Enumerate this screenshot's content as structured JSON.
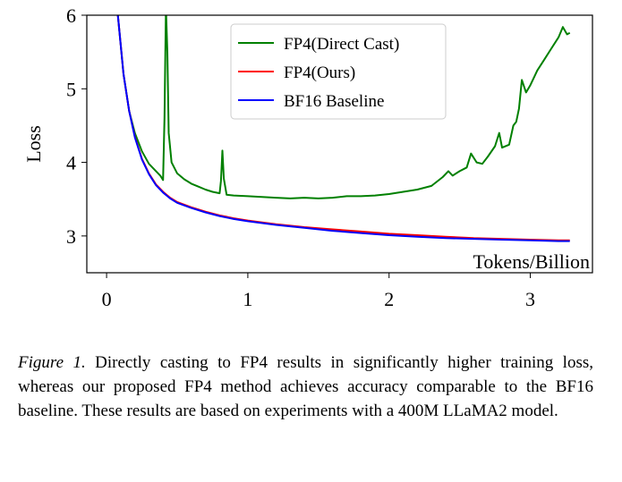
{
  "chart_data": {
    "type": "line",
    "xlabel": "Tokens/Billion",
    "ylabel": "Loss",
    "xlim": [
      -0.14,
      3.44
    ],
    "ylim": [
      2.5,
      6.0
    ],
    "xticks": [
      0,
      1,
      2,
      3
    ],
    "xtick_labels": [
      "0",
      "1",
      "2",
      "3"
    ],
    "yticks": [
      3,
      4,
      5,
      6
    ],
    "ytick_labels": [
      "3",
      "4",
      "5",
      "6"
    ],
    "grid": false,
    "legend_position": "top-center",
    "series": [
      {
        "name": "FP4(Direct Cast)",
        "color": "#008000",
        "points": [
          [
            0.08,
            6.0
          ],
          [
            0.12,
            5.2
          ],
          [
            0.16,
            4.7
          ],
          [
            0.2,
            4.4
          ],
          [
            0.25,
            4.15
          ],
          [
            0.3,
            3.98
          ],
          [
            0.35,
            3.88
          ],
          [
            0.38,
            3.82
          ],
          [
            0.4,
            3.76
          ],
          [
            0.41,
            4.6
          ],
          [
            0.42,
            6.1
          ],
          [
            0.43,
            5.5
          ],
          [
            0.44,
            4.4
          ],
          [
            0.46,
            4.0
          ],
          [
            0.5,
            3.85
          ],
          [
            0.55,
            3.77
          ],
          [
            0.6,
            3.71
          ],
          [
            0.65,
            3.67
          ],
          [
            0.7,
            3.63
          ],
          [
            0.75,
            3.6
          ],
          [
            0.8,
            3.58
          ],
          [
            0.81,
            3.75
          ],
          [
            0.82,
            4.16
          ],
          [
            0.83,
            3.78
          ],
          [
            0.85,
            3.56
          ],
          [
            0.9,
            3.55
          ],
          [
            1.0,
            3.54
          ],
          [
            1.1,
            3.53
          ],
          [
            1.2,
            3.52
          ],
          [
            1.3,
            3.51
          ],
          [
            1.4,
            3.52
          ],
          [
            1.5,
            3.51
          ],
          [
            1.6,
            3.52
          ],
          [
            1.7,
            3.54
          ],
          [
            1.8,
            3.54
          ],
          [
            1.9,
            3.55
          ],
          [
            2.0,
            3.57
          ],
          [
            2.1,
            3.6
          ],
          [
            2.2,
            3.63
          ],
          [
            2.3,
            3.68
          ],
          [
            2.38,
            3.8
          ],
          [
            2.42,
            3.88
          ],
          [
            2.45,
            3.82
          ],
          [
            2.5,
            3.88
          ],
          [
            2.55,
            3.93
          ],
          [
            2.58,
            4.12
          ],
          [
            2.62,
            4.0
          ],
          [
            2.66,
            3.98
          ],
          [
            2.7,
            4.08
          ],
          [
            2.75,
            4.22
          ],
          [
            2.78,
            4.4
          ],
          [
            2.8,
            4.2
          ],
          [
            2.85,
            4.24
          ],
          [
            2.88,
            4.5
          ],
          [
            2.9,
            4.55
          ],
          [
            2.92,
            4.73
          ],
          [
            2.94,
            5.12
          ],
          [
            2.97,
            4.95
          ],
          [
            3.0,
            5.05
          ],
          [
            3.05,
            5.25
          ],
          [
            3.1,
            5.4
          ],
          [
            3.15,
            5.55
          ],
          [
            3.2,
            5.7
          ],
          [
            3.23,
            5.84
          ],
          [
            3.26,
            5.74
          ],
          [
            3.28,
            5.76
          ]
        ]
      },
      {
        "name": "FP4(Ours)",
        "color": "#ff0000",
        "points": [
          [
            0.08,
            6.0
          ],
          [
            0.12,
            5.2
          ],
          [
            0.16,
            4.7
          ],
          [
            0.2,
            4.35
          ],
          [
            0.25,
            4.05
          ],
          [
            0.3,
            3.85
          ],
          [
            0.35,
            3.7
          ],
          [
            0.4,
            3.6
          ],
          [
            0.45,
            3.52
          ],
          [
            0.5,
            3.46
          ],
          [
            0.6,
            3.39
          ],
          [
            0.7,
            3.33
          ],
          [
            0.8,
            3.28
          ],
          [
            0.9,
            3.24
          ],
          [
            1.0,
            3.21
          ],
          [
            1.2,
            3.16
          ],
          [
            1.4,
            3.12
          ],
          [
            1.6,
            3.09
          ],
          [
            1.8,
            3.06
          ],
          [
            2.0,
            3.03
          ],
          [
            2.2,
            3.01
          ],
          [
            2.4,
            2.99
          ],
          [
            2.6,
            2.97
          ],
          [
            2.8,
            2.96
          ],
          [
            3.0,
            2.95
          ],
          [
            3.2,
            2.94
          ],
          [
            3.28,
            2.94
          ]
        ]
      },
      {
        "name": "BF16 Baseline",
        "color": "#0000ff",
        "points": [
          [
            0.08,
            6.0
          ],
          [
            0.12,
            5.2
          ],
          [
            0.16,
            4.7
          ],
          [
            0.2,
            4.34
          ],
          [
            0.25,
            4.04
          ],
          [
            0.3,
            3.84
          ],
          [
            0.35,
            3.69
          ],
          [
            0.4,
            3.59
          ],
          [
            0.45,
            3.51
          ],
          [
            0.5,
            3.45
          ],
          [
            0.6,
            3.38
          ],
          [
            0.7,
            3.32
          ],
          [
            0.8,
            3.27
          ],
          [
            0.9,
            3.23
          ],
          [
            1.0,
            3.2
          ],
          [
            1.2,
            3.15
          ],
          [
            1.4,
            3.11
          ],
          [
            1.6,
            3.07
          ],
          [
            1.8,
            3.04
          ],
          [
            2.0,
            3.01
          ],
          [
            2.2,
            2.99
          ],
          [
            2.4,
            2.97
          ],
          [
            2.6,
            2.96
          ],
          [
            2.8,
            2.95
          ],
          [
            3.0,
            2.94
          ],
          [
            3.2,
            2.93
          ],
          [
            3.28,
            2.93
          ]
        ]
      }
    ]
  },
  "caption": {
    "lead": "Figure 1.",
    "text": " Directly casting to FP4 results in significantly higher training loss, whereas our proposed FP4 method achieves accuracy comparable to the BF16 baseline.  These results are based on experiments with a 400M LLaMA2 model."
  }
}
